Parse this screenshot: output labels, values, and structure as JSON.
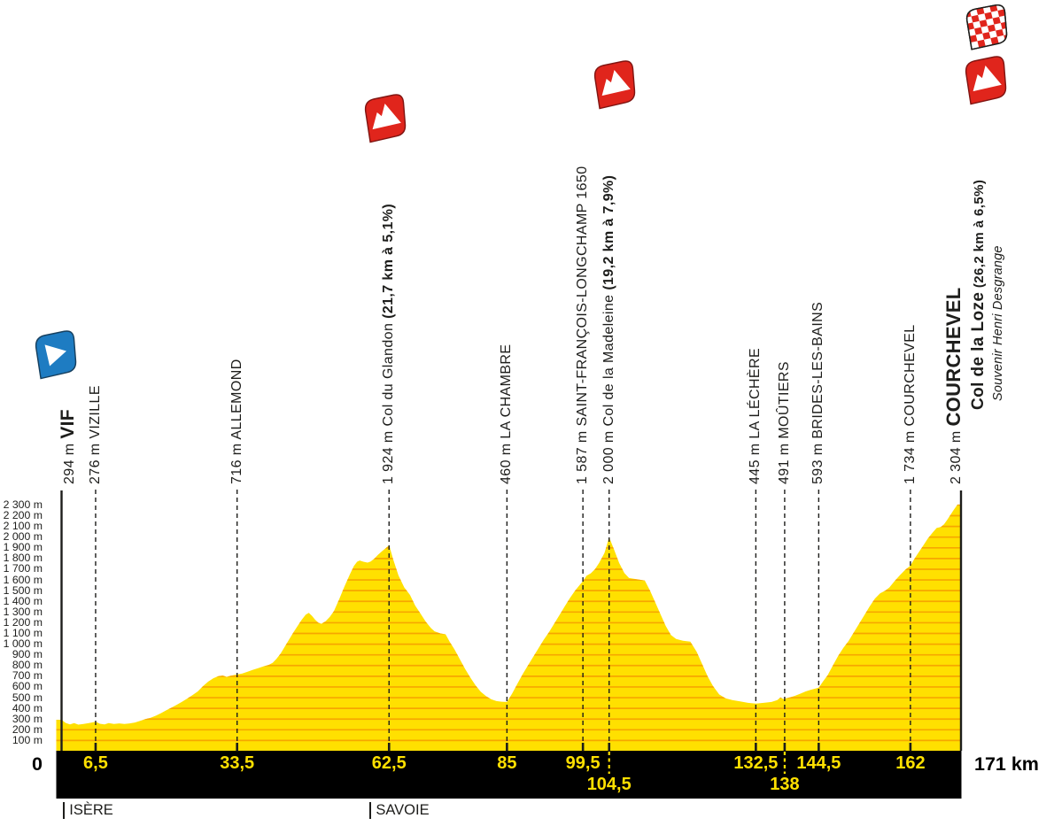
{
  "colors": {
    "yellow": "#FFE000",
    "contour_orange": "#F7A600",
    "bar_black": "#000000",
    "flag_red": "#E0251C",
    "flag_blue": "#1E7CC2",
    "text_dark": "#1D1D1B"
  },
  "icons": {
    "start": "start-flag-icon",
    "climb": "mountain-flag-icon",
    "finish": "checkered-flag-icon"
  },
  "chart_data": {
    "type": "area",
    "x_unit": "km",
    "y_unit": "m",
    "xlim": [
      0,
      171
    ],
    "ylim": [
      0,
      2400
    ],
    "grid": "horizontal contour lines every 100 m clipped to area",
    "legend": "none",
    "x_start_label": "0",
    "x_end_label": "171 km",
    "y_tick_labels": [
      "2 300 m",
      "2 200 m",
      "2 100 m",
      "2 000 m",
      "1 900 m",
      "1 800 m",
      "1 700 m",
      "1 600 m",
      "1 500 m",
      "1 400 m",
      "1 300 m",
      "1 200 m",
      "1 100 m",
      "1 000 m",
      "900 m",
      "800 m",
      "700 m",
      "600 m",
      "500 m",
      "400 m",
      "300 m",
      "200 m",
      "100 m"
    ],
    "x_ticks_row1": [
      {
        "km": 6.5,
        "label": "6,5"
      },
      {
        "km": 33.5,
        "label": "33,5"
      },
      {
        "km": 62.5,
        "label": "62,5"
      },
      {
        "km": 85,
        "label": "85"
      },
      {
        "km": 99.5,
        "label": "99,5"
      },
      {
        "km": 132.5,
        "label": "132,5"
      },
      {
        "km": 144.5,
        "label": "144,5"
      },
      {
        "km": 162,
        "label": "162"
      }
    ],
    "x_ticks_row2": [
      {
        "km": 104.5,
        "label": "104,5"
      },
      {
        "km": 138,
        "label": "138"
      }
    ],
    "regions": [
      {
        "km": 0.3,
        "label": "ISÈRE"
      },
      {
        "km": 58.8,
        "label": "SAVOIE"
      }
    ],
    "markers": [
      {
        "type": "start",
        "km": 0,
        "elevation": "294 m",
        "name": "VIF"
      },
      {
        "type": "town",
        "km": 6.5,
        "elevation": "276 m",
        "name": "VIZILLE"
      },
      {
        "type": "town",
        "km": 33.5,
        "elevation": "716 m",
        "name": "ALLEMOND"
      },
      {
        "type": "climb",
        "km": 62.5,
        "elevation": "1 924 m",
        "name": "Col du Glandon",
        "detail": "(21,7 km à 5,1%)"
      },
      {
        "type": "town",
        "km": 85,
        "elevation": "460 m",
        "name": "LA CHAMBRE"
      },
      {
        "type": "town",
        "km": 99.5,
        "elevation": "1 587 m",
        "name": "SAINT-FRANÇOIS-LONGCHAMP 1650"
      },
      {
        "type": "climb",
        "km": 104.5,
        "elevation": "2 000 m",
        "name": "Col de la Madeleine",
        "detail": "(19,2 km à 7,9%)"
      },
      {
        "type": "town",
        "km": 132.5,
        "elevation": "445 m",
        "name": "LA LÉCHÈRE"
      },
      {
        "type": "town",
        "km": 138,
        "elevation": "491 m",
        "name": "MOÛTIERS"
      },
      {
        "type": "town",
        "km": 144.5,
        "elevation": "593 m",
        "name": "BRIDES-LES-BAINS"
      },
      {
        "type": "town",
        "km": 162,
        "elevation": "1 734 m",
        "name": "COURCHEVEL"
      },
      {
        "type": "finish",
        "km": 171,
        "elevation": "2 304 m",
        "name": "COURCHEVEL",
        "sub_name": "Col de la Loze",
        "detail": "(26,2 km à 6,5%)",
        "note": "Souvenir Henri Desgrange"
      }
    ],
    "profile": [
      [
        0,
        294
      ],
      [
        0.8,
        264
      ],
      [
        1.6,
        250
      ],
      [
        2.4,
        262
      ],
      [
        3.2,
        248
      ],
      [
        4.2,
        254
      ],
      [
        5.2,
        262
      ],
      [
        6,
        270
      ],
      [
        6.5,
        276
      ],
      [
        7.3,
        256
      ],
      [
        8.2,
        250
      ],
      [
        9,
        262
      ],
      [
        10,
        254
      ],
      [
        11,
        260
      ],
      [
        12,
        254
      ],
      [
        13,
        260
      ],
      [
        14,
        268
      ],
      [
        15,
        284
      ],
      [
        16,
        300
      ],
      [
        17,
        312
      ],
      [
        18,
        332
      ],
      [
        19,
        356
      ],
      [
        20,
        382
      ],
      [
        21,
        408
      ],
      [
        22,
        434
      ],
      [
        23,
        462
      ],
      [
        24,
        492
      ],
      [
        25,
        524
      ],
      [
        26,
        558
      ],
      [
        27,
        608
      ],
      [
        28,
        650
      ],
      [
        29,
        682
      ],
      [
        30,
        702
      ],
      [
        30.8,
        706
      ],
      [
        31.5,
        694
      ],
      [
        32.2,
        704
      ],
      [
        33,
        712
      ],
      [
        33.5,
        716
      ],
      [
        34.5,
        726
      ],
      [
        35.5,
        742
      ],
      [
        36.5,
        760
      ],
      [
        37.5,
        776
      ],
      [
        38.5,
        792
      ],
      [
        39.5,
        806
      ],
      [
        40.3,
        826
      ],
      [
        41,
        862
      ],
      [
        41.8,
        912
      ],
      [
        42.6,
        976
      ],
      [
        43.4,
        1042
      ],
      [
        44.2,
        1106
      ],
      [
        45,
        1166
      ],
      [
        45.8,
        1226
      ],
      [
        46.6,
        1276
      ],
      [
        47.2,
        1292
      ],
      [
        47.8,
        1264
      ],
      [
        48.4,
        1228
      ],
      [
        49,
        1200
      ],
      [
        49.6,
        1190
      ],
      [
        50.4,
        1215
      ],
      [
        51.2,
        1255
      ],
      [
        52,
        1310
      ],
      [
        53,
        1420
      ],
      [
        54,
        1540
      ],
      [
        55,
        1650
      ],
      [
        55.8,
        1730
      ],
      [
        56.4,
        1770
      ],
      [
        56.9,
        1782
      ],
      [
        57.6,
        1770
      ],
      [
        58.4,
        1762
      ],
      [
        59,
        1772
      ],
      [
        59.7,
        1800
      ],
      [
        60.4,
        1835
      ],
      [
        61.2,
        1870
      ],
      [
        61.9,
        1898
      ],
      [
        62.5,
        1924
      ],
      [
        63.3,
        1790
      ],
      [
        64.3,
        1642
      ],
      [
        65.4,
        1530
      ],
      [
        66.5,
        1460
      ],
      [
        67.5,
        1360
      ],
      [
        68.5,
        1286
      ],
      [
        69.5,
        1210
      ],
      [
        70.5,
        1150
      ],
      [
        71.2,
        1120
      ],
      [
        72.3,
        1100
      ],
      [
        73.3,
        1092
      ],
      [
        74.1,
        1020
      ],
      [
        75,
        950
      ],
      [
        76,
        860
      ],
      [
        77,
        770
      ],
      [
        78,
        690
      ],
      [
        79,
        615
      ],
      [
        80,
        555
      ],
      [
        81,
        515
      ],
      [
        82,
        485
      ],
      [
        83,
        468
      ],
      [
        84,
        462
      ],
      [
        85,
        460
      ],
      [
        86,
        540
      ],
      [
        87,
        630
      ],
      [
        88,
        720
      ],
      [
        89,
        800
      ],
      [
        90,
        880
      ],
      [
        91,
        960
      ],
      [
        92,
        1040
      ],
      [
        93,
        1110
      ],
      [
        94,
        1190
      ],
      [
        95,
        1270
      ],
      [
        96,
        1350
      ],
      [
        97,
        1430
      ],
      [
        98,
        1500
      ],
      [
        99,
        1560
      ],
      [
        99.5,
        1587
      ],
      [
        100.2,
        1640
      ],
      [
        101,
        1662
      ],
      [
        101.8,
        1700
      ],
      [
        102.6,
        1760
      ],
      [
        103.6,
        1850
      ],
      [
        104,
        1915
      ],
      [
        104.5,
        2000
      ],
      [
        105.4,
        1890
      ],
      [
        106.4,
        1760
      ],
      [
        107.4,
        1665
      ],
      [
        108.3,
        1618
      ],
      [
        109.6,
        1608
      ],
      [
        111.3,
        1595
      ],
      [
        112.3,
        1500
      ],
      [
        113.3,
        1390
      ],
      [
        114.3,
        1280
      ],
      [
        115.3,
        1170
      ],
      [
        116.3,
        1085
      ],
      [
        117.3,
        1048
      ],
      [
        118.6,
        1032
      ],
      [
        120,
        1024
      ],
      [
        121.2,
        930
      ],
      [
        122.3,
        810
      ],
      [
        123.3,
        700
      ],
      [
        124.3,
        610
      ],
      [
        125.5,
        530
      ],
      [
        126.7,
        495
      ],
      [
        128,
        478
      ],
      [
        129.5,
        465
      ],
      [
        131,
        452
      ],
      [
        132.5,
        445
      ],
      [
        134,
        452
      ],
      [
        135.5,
        460
      ],
      [
        136.6,
        478
      ],
      [
        137.2,
        502
      ],
      [
        137.7,
        488
      ],
      [
        138,
        491
      ],
      [
        139,
        502
      ],
      [
        140,
        518
      ],
      [
        141,
        538
      ],
      [
        142,
        558
      ],
      [
        143,
        574
      ],
      [
        144.5,
        593
      ],
      [
        145.3,
        650
      ],
      [
        146.2,
        710
      ],
      [
        147.2,
        800
      ],
      [
        148.2,
        890
      ],
      [
        149.2,
        965
      ],
      [
        150.2,
        1030
      ],
      [
        151.2,
        1110
      ],
      [
        152.2,
        1190
      ],
      [
        153.2,
        1270
      ],
      [
        154.2,
        1350
      ],
      [
        155.2,
        1425
      ],
      [
        156.2,
        1475
      ],
      [
        157.2,
        1500
      ],
      [
        158,
        1530
      ],
      [
        159,
        1590
      ],
      [
        160,
        1645
      ],
      [
        161,
        1695
      ],
      [
        162,
        1734
      ],
      [
        162.8,
        1800
      ],
      [
        163.6,
        1860
      ],
      [
        164.5,
        1925
      ],
      [
        165.3,
        1985
      ],
      [
        166.2,
        2040
      ],
      [
        167,
        2085
      ],
      [
        167.8,
        2095
      ],
      [
        168.4,
        2120
      ],
      [
        169,
        2160
      ],
      [
        169.6,
        2205
      ],
      [
        170.2,
        2250
      ],
      [
        170.7,
        2285
      ],
      [
        171,
        2304
      ]
    ]
  }
}
